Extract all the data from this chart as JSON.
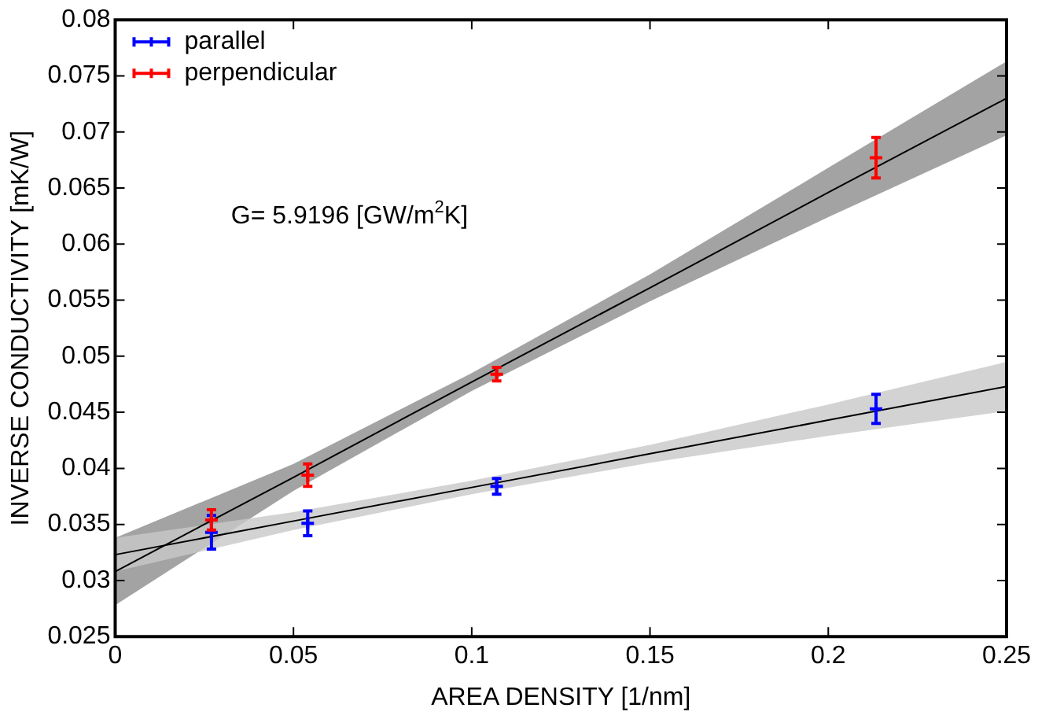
{
  "chart_data": {
    "type": "scatter",
    "xlabel": "AREA DENSITY [1/nm]",
    "ylabel": "INVERSE CONDUCTIVITY [mK/W]",
    "xlim": [
      0,
      0.25
    ],
    "xticks": [
      0,
      0.05,
      0.1,
      0.15,
      0.2,
      0.25
    ],
    "ylim": [
      0.025,
      0.08
    ],
    "yticks": [
      0.025,
      0.03,
      0.035,
      0.04,
      0.045,
      0.05,
      0.055,
      0.06,
      0.065,
      0.07,
      0.075,
      0.08
    ],
    "grid": false,
    "legend": "top left",
    "marker": "cross",
    "annotations": [
      "G= 5.9196 [GW/m$^{2}$K]"
    ],
    "series": [
      {
        "name": "parallel",
        "color": "#0000ff",
        "x": [
          0.027,
          0.054,
          0.107,
          0.2134
        ],
        "values": [
          0.0343,
          0.0351,
          0.0384,
          0.0453
        ],
        "errors": [
          0.0015,
          0.0011,
          0.0007,
          0.0013
        ]
      },
      {
        "name": "perpendicular",
        "color": "#ff0000",
        "x": [
          0.027,
          0.054,
          0.107,
          0.2134
        ],
        "values": [
          0.0354,
          0.0394,
          0.0484,
          0.0677
        ],
        "errors": [
          0.0009,
          0.001,
          0.0006,
          0.0018
        ]
      },
      {
        "type": "line",
        "marker": "none",
        "color": "#000000",
        "x": [
          0,
          0.05,
          0.1,
          0.15,
          0.2,
          0.25
        ],
        "values": [
          0.0323,
          0.0353,
          0.0383,
          0.0413,
          0.0443,
          0.0473
        ],
        "lower": [
          0.0308,
          0.0345,
          0.0377,
          0.0405,
          0.0429,
          0.0451
        ],
        "upper": [
          0.0338,
          0.0361,
          0.0389,
          0.0421,
          0.0457,
          0.0495
        ]
      },
      {
        "type": "line",
        "marker": "none",
        "color": "#000000",
        "x": [
          0,
          0.05,
          0.1,
          0.15,
          0.2,
          0.25
        ],
        "values": [
          0.0308,
          0.0392,
          0.0477,
          0.0561,
          0.0646,
          0.073
        ],
        "lower": [
          0.0278,
          0.038,
          0.0469,
          0.0549,
          0.0624,
          0.0697
        ],
        "upper": [
          0.0338,
          0.0404,
          0.0485,
          0.0573,
          0.0668,
          0.0763
        ]
      }
    ]
  }
}
